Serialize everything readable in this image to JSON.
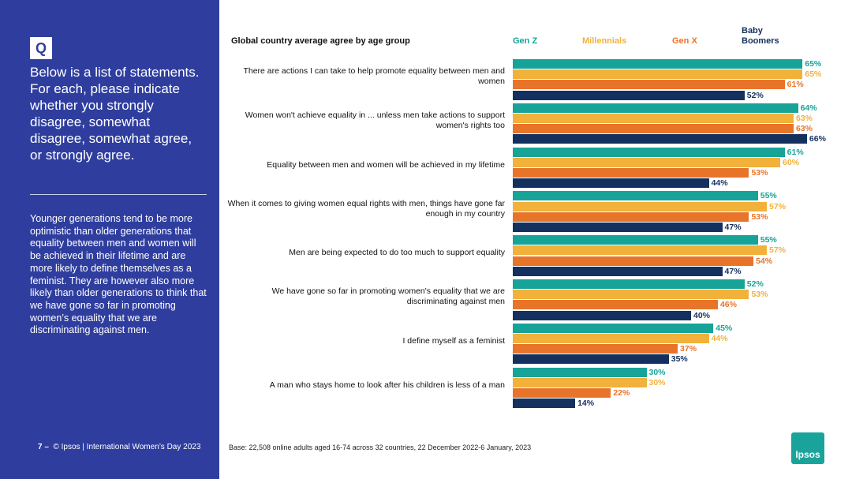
{
  "sidebar": {
    "badge": "Q",
    "question": "Below is a list of statements. For each, please indicate whether you strongly disagree, somewhat disagree, somewhat agree, or strongly agree.",
    "summary": "Younger generations tend to be more optimistic than older generations that equality between men and women will be achieved in their lifetime and are more likely to define themselves as a feminist. They are however also more likely than older generations to think that we have gone so far in promoting women’s equality that we are discriminating against men.",
    "page_number": "7 –",
    "footer": "© Ipsos | International Women’s Day 2023"
  },
  "base_note": "Base: 22,508 online adults aged 16-74 across 32 countries, 22 December 2022-6 January, 2023",
  "logo": "Ipsos",
  "chart_data": {
    "type": "bar",
    "orientation": "horizontal",
    "title": "Global country average agree by age group",
    "categories": [
      "There are actions I can take to help promote equality between men and women",
      "Women won't achieve equality in ... unless men take actions to support women's rights too",
      "Equality between men and women will be achieved in my lifetime",
      "When it comes to giving women equal rights with men, things have gone far enough in my country",
      "Men are being expected to do too much to support equality",
      "We have gone so far in promoting women's equality that we are discriminating against men",
      "I define myself as a feminist",
      "A man who stays home to look after his children is less of a man"
    ],
    "series": [
      {
        "name": "Gen Z",
        "color": "#17a398",
        "values": [
          65,
          64,
          61,
          55,
          55,
          52,
          45,
          30
        ],
        "value_labels": [
          "65%",
          "64%",
          "61%",
          "55%",
          "55%",
          "52%",
          "45%",
          "30%"
        ]
      },
      {
        "name": "Millennials",
        "color": "#f2b13b",
        "values": [
          65,
          63,
          60,
          57,
          57,
          53,
          44,
          30
        ],
        "value_labels": [
          "65%",
          "63%",
          "60%",
          "57%",
          "57%",
          "53%",
          "44%",
          "30%"
        ]
      },
      {
        "name": "Gen X",
        "color": "#e8742a",
        "values": [
          61,
          63,
          53,
          53,
          54,
          46,
          37,
          22
        ],
        "value_labels": [
          "61%",
          "63%",
          "53%",
          "53%",
          "54%",
          "46%",
          "37%",
          "22%"
        ]
      },
      {
        "name": "Baby Boomers",
        "color": "#14305e",
        "values": [
          52,
          66,
          44,
          47,
          47,
          40,
          35,
          14
        ],
        "value_labels": [
          "52%",
          "66%",
          "44%",
          "47%",
          "47%",
          "40%",
          "35%",
          "14%"
        ]
      }
    ]
  }
}
